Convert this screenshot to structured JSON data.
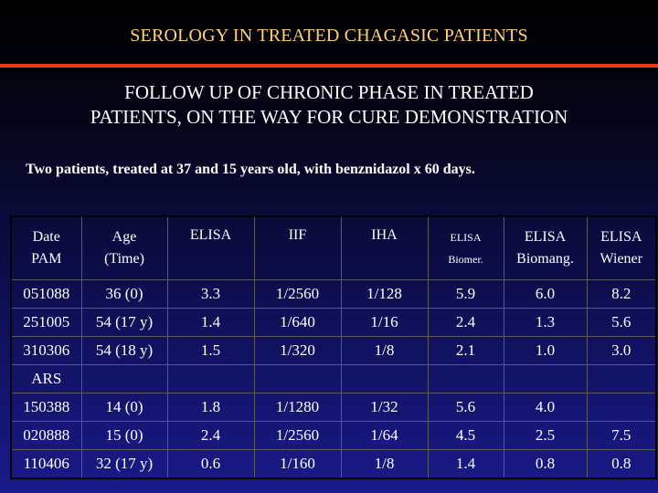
{
  "slide": {
    "title": "SEROLOGY IN TREATED CHAGASIC PATIENTS",
    "subtitle_line1": "FOLLOW UP OF CHRONIC PHASE IN TREATED",
    "subtitle_line2": "PATIENTS, ON THE WAY FOR CURE DEMONSTRATION",
    "description": "Two patients, treated at 37 and 15 years old, with benznidazol x 60 days.",
    "colors": {
      "title": "#ffd27a",
      "rule": "#e83a1a"
    }
  },
  "table": {
    "headers": [
      {
        "line1": "Date",
        "line2": "PAM"
      },
      {
        "line1": "Age",
        "line2": "(Time)"
      },
      {
        "line1": "ELISA",
        "line2": ""
      },
      {
        "line1": "IIF",
        "line2": ""
      },
      {
        "line1": "IHA",
        "line2": ""
      },
      {
        "line1": "ELISA",
        "line2": "Biomer."
      },
      {
        "line1": "ELISA",
        "line2": "Biomang."
      },
      {
        "line1": "ELISA",
        "line2": "Wiener"
      }
    ],
    "rows": [
      [
        "051088",
        "36 (0)",
        "3.3",
        "1/2560",
        "1/128",
        "5.9",
        "6.0",
        "8.2"
      ],
      [
        "251005",
        "54 (17 y)",
        "1.4",
        "1/640",
        "1/16",
        "2.4",
        "1.3",
        "5.6"
      ],
      [
        "310306",
        "54 (18 y)",
        "1.5",
        "1/320",
        "1/8",
        "2.1",
        "1.0",
        "3.0"
      ]
    ],
    "section_label": "ARS",
    "rows2": [
      [
        "150388",
        "14 (0)",
        "1.8",
        "1/1280",
        "1/32",
        "5.6",
        "4.0",
        ""
      ],
      [
        "020888",
        "15 (0)",
        "2.4",
        "1/2560",
        "1/64",
        "4.5",
        "2.5",
        "7.5"
      ],
      [
        "110406",
        "32 (17 y)",
        "0.6",
        "1/160",
        "1/8",
        "1.4",
        "0.8",
        "0.8"
      ]
    ]
  }
}
